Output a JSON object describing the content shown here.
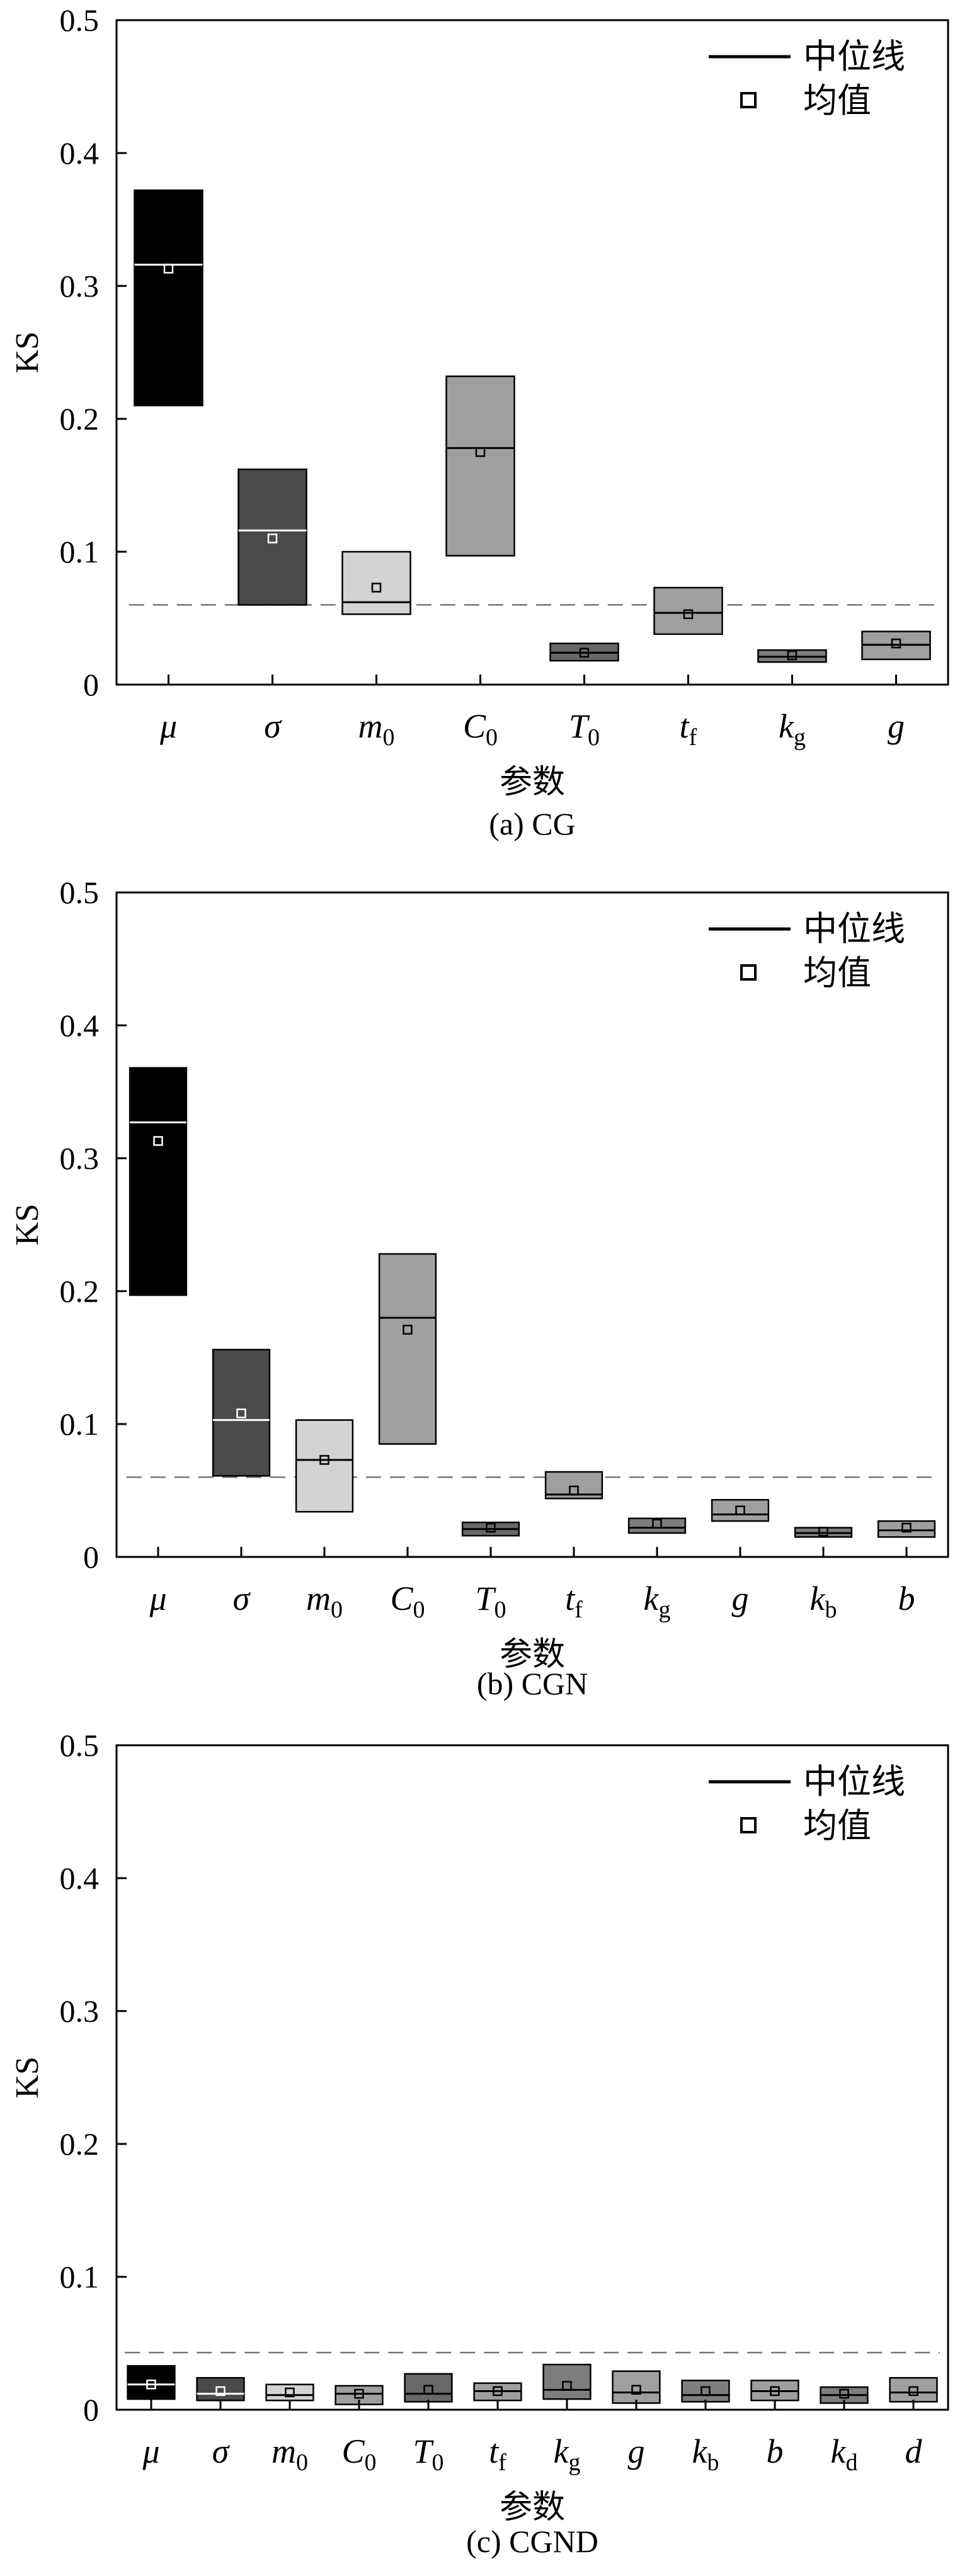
{
  "chart_data": [
    {
      "type": "box",
      "caption": "(a) CG",
      "xlabel": "参数",
      "ylabel": "KS",
      "ylim": [
        0,
        0.5
      ],
      "yticks": [
        "0",
        "0.1",
        "0.2",
        "0.3",
        "0.4",
        "0.5"
      ],
      "reference_line": 0.06,
      "legend": {
        "median_label": "中位线",
        "mean_label": "均值",
        "position": "top-right"
      },
      "categories": [
        {
          "base": "μ",
          "sub": ""
        },
        {
          "base": "σ",
          "sub": ""
        },
        {
          "base": "m",
          "sub": "0"
        },
        {
          "base": "C",
          "sub": "0"
        },
        {
          "base": "T",
          "sub": "0"
        },
        {
          "base": "t",
          "sub": "f"
        },
        {
          "base": "k",
          "sub": "g"
        },
        {
          "base": "g",
          "sub": ""
        }
      ],
      "boxes": [
        {
          "low": 0.21,
          "high": 0.372,
          "median": 0.316,
          "mean": 0.313,
          "color": "#000000"
        },
        {
          "low": 0.06,
          "high": 0.162,
          "median": 0.116,
          "mean": 0.11,
          "color": "#4a4a4a"
        },
        {
          "low": 0.053,
          "high": 0.1,
          "median": 0.062,
          "mean": 0.073,
          "color": "#d3d3d3"
        },
        {
          "low": 0.097,
          "high": 0.232,
          "median": 0.178,
          "mean": 0.175,
          "color": "#9f9f9f"
        },
        {
          "low": 0.018,
          "high": 0.031,
          "median": 0.024,
          "mean": 0.024,
          "color": "#686868"
        },
        {
          "low": 0.038,
          "high": 0.073,
          "median": 0.054,
          "mean": 0.053,
          "color": "#9f9f9f"
        },
        {
          "low": 0.017,
          "high": 0.026,
          "median": 0.021,
          "mean": 0.022,
          "color": "#7d7d7d"
        },
        {
          "low": 0.019,
          "high": 0.04,
          "median": 0.03,
          "mean": 0.031,
          "color": "#9f9f9f"
        }
      ]
    },
    {
      "type": "box",
      "caption": "(b) CGN",
      "xlabel": "参数",
      "ylabel": "KS",
      "ylim": [
        0,
        0.5
      ],
      "yticks": [
        "0",
        "0.1",
        "0.2",
        "0.3",
        "0.4",
        "0.5"
      ],
      "reference_line": 0.06,
      "legend": {
        "median_label": "中位线",
        "mean_label": "均值",
        "position": "top-right"
      },
      "categories": [
        {
          "base": "μ",
          "sub": ""
        },
        {
          "base": "σ",
          "sub": ""
        },
        {
          "base": "m",
          "sub": "0"
        },
        {
          "base": "C",
          "sub": "0"
        },
        {
          "base": "T",
          "sub": "0"
        },
        {
          "base": "t",
          "sub": "f"
        },
        {
          "base": "k",
          "sub": "g"
        },
        {
          "base": "g",
          "sub": ""
        },
        {
          "base": "k",
          "sub": "b"
        },
        {
          "base": "b",
          "sub": ""
        }
      ],
      "boxes": [
        {
          "low": 0.197,
          "high": 0.368,
          "median": 0.327,
          "mean": 0.313,
          "color": "#000000"
        },
        {
          "low": 0.061,
          "high": 0.156,
          "median": 0.103,
          "mean": 0.108,
          "color": "#4a4a4a"
        },
        {
          "low": 0.034,
          "high": 0.103,
          "median": 0.073,
          "mean": 0.073,
          "color": "#d3d3d3"
        },
        {
          "low": 0.085,
          "high": 0.228,
          "median": 0.18,
          "mean": 0.171,
          "color": "#9f9f9f"
        },
        {
          "low": 0.016,
          "high": 0.026,
          "median": 0.021,
          "mean": 0.022,
          "color": "#686868"
        },
        {
          "low": 0.044,
          "high": 0.064,
          "median": 0.047,
          "mean": 0.05,
          "color": "#9f9f9f"
        },
        {
          "low": 0.018,
          "high": 0.029,
          "median": 0.022,
          "mean": 0.025,
          "color": "#7d7d7d"
        },
        {
          "low": 0.027,
          "high": 0.043,
          "median": 0.032,
          "mean": 0.035,
          "color": "#9f9f9f"
        },
        {
          "low": 0.015,
          "high": 0.022,
          "median": 0.018,
          "mean": 0.019,
          "color": "#7d7d7d"
        },
        {
          "low": 0.015,
          "high": 0.027,
          "median": 0.02,
          "mean": 0.022,
          "color": "#9f9f9f"
        }
      ]
    },
    {
      "type": "box",
      "caption": "(c) CGND",
      "xlabel": "参数",
      "ylabel": "KS",
      "ylim": [
        0,
        0.5
      ],
      "yticks": [
        "0",
        "0.1",
        "0.2",
        "0.3",
        "0.4",
        "0.5"
      ],
      "reference_line": 0.043,
      "legend": {
        "median_label": "中位线",
        "mean_label": "均值",
        "position": "top-right"
      },
      "categories": [
        {
          "base": "μ",
          "sub": ""
        },
        {
          "base": "σ",
          "sub": ""
        },
        {
          "base": "m",
          "sub": "0"
        },
        {
          "base": "C",
          "sub": "0"
        },
        {
          "base": "T",
          "sub": "0"
        },
        {
          "base": "t",
          "sub": "f"
        },
        {
          "base": "k",
          "sub": "g"
        },
        {
          "base": "g",
          "sub": ""
        },
        {
          "base": "k",
          "sub": "b"
        },
        {
          "base": "b",
          "sub": ""
        },
        {
          "base": "k",
          "sub": "d"
        },
        {
          "base": "d",
          "sub": ""
        }
      ],
      "boxes": [
        {
          "low": 0.008,
          "high": 0.033,
          "median": 0.019,
          "mean": 0.019,
          "color": "#000000"
        },
        {
          "low": 0.007,
          "high": 0.024,
          "median": 0.012,
          "mean": 0.014,
          "color": "#4a4a4a"
        },
        {
          "low": 0.007,
          "high": 0.019,
          "median": 0.011,
          "mean": 0.013,
          "color": "#d3d3d3"
        },
        {
          "low": 0.004,
          "high": 0.018,
          "median": 0.012,
          "mean": 0.012,
          "color": "#9f9f9f"
        },
        {
          "low": 0.006,
          "high": 0.027,
          "median": 0.012,
          "mean": 0.015,
          "color": "#686868"
        },
        {
          "low": 0.007,
          "high": 0.02,
          "median": 0.014,
          "mean": 0.014,
          "color": "#9f9f9f"
        },
        {
          "low": 0.008,
          "high": 0.034,
          "median": 0.015,
          "mean": 0.018,
          "color": "#7d7d7d"
        },
        {
          "low": 0.005,
          "high": 0.029,
          "median": 0.013,
          "mean": 0.015,
          "color": "#9f9f9f"
        },
        {
          "low": 0.006,
          "high": 0.022,
          "median": 0.011,
          "mean": 0.014,
          "color": "#7d7d7d"
        },
        {
          "low": 0.007,
          "high": 0.022,
          "median": 0.014,
          "mean": 0.014,
          "color": "#9f9f9f"
        },
        {
          "low": 0.005,
          "high": 0.017,
          "median": 0.011,
          "mean": 0.012,
          "color": "#7d7d7d"
        },
        {
          "low": 0.006,
          "high": 0.024,
          "median": 0.013,
          "mean": 0.014,
          "color": "#9f9f9f"
        }
      ]
    }
  ]
}
